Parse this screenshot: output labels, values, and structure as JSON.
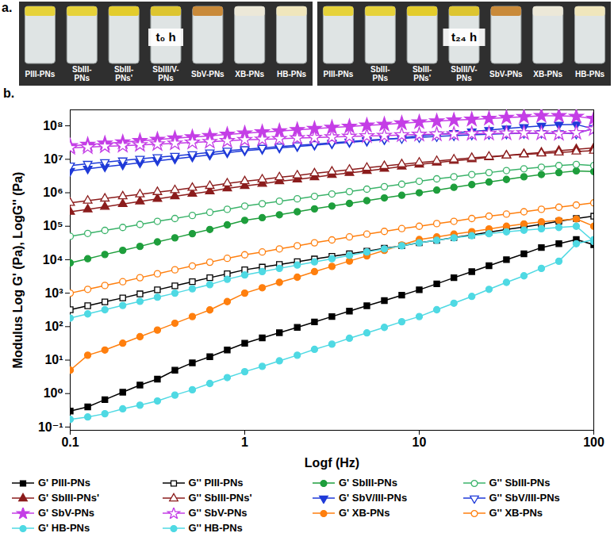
{
  "panel_a": {
    "label": "a.",
    "groups": [
      {
        "time": "t₀ h",
        "samples": [
          "PIII-PNs",
          "SbIII-PNs",
          "SbIII-PNs'",
          "SbIII/V-PNs",
          "SbV-PNs",
          "XB-PNs",
          "HB-PNs"
        ]
      },
      {
        "time": "t₂₄ h",
        "samples": [
          "PIII-PNs",
          "SbIII-PNs",
          "SbIII-PNs'",
          "SbIII/V-PNs",
          "SbV-PNs",
          "XB-PNs",
          "HB-PNs"
        ]
      }
    ]
  },
  "panel_b": {
    "label": "b."
  },
  "chart_data": {
    "type": "line",
    "x_label": "Logf (Hz)",
    "y_label": "Modulus Log G' (Pa), LogG'' (Pa)",
    "log": true,
    "grid": false,
    "legend": "bottom",
    "xlim": [
      0.1,
      100
    ],
    "xticks": [
      0.1,
      1,
      10,
      100
    ],
    "ylim": [
      0.08,
      300000000
    ],
    "yticks": [
      {
        "value": 0.1,
        "label": "10⁻¹"
      },
      {
        "value": 1,
        "label": "10⁰"
      },
      {
        "value": 10,
        "label": "10¹"
      },
      {
        "value": 100,
        "label": "10²"
      },
      {
        "value": 1000,
        "label": "10³"
      },
      {
        "value": 10000,
        "label": "10⁴"
      },
      {
        "value": 100000,
        "label": "10⁵"
      },
      {
        "value": 1000000,
        "label": "10⁶"
      },
      {
        "value": 10000000,
        "label": "10⁷"
      },
      {
        "value": 100000000,
        "label": "10⁸"
      }
    ],
    "x": [
      0.1,
      0.126,
      0.158,
      0.2,
      0.251,
      0.316,
      0.398,
      0.501,
      0.631,
      0.794,
      1,
      1.26,
      1.58,
      2,
      2.51,
      3.16,
      3.98,
      5.01,
      6.31,
      7.94,
      10,
      12.6,
      15.8,
      20,
      25.1,
      31.6,
      39.8,
      50.1,
      63.1,
      79.4,
      100
    ],
    "series": [
      {
        "name": "G' PIII-PNs",
        "color": "#000000",
        "marker": "square",
        "values": [
          0.3,
          0.4,
          0.66,
          1.1,
          1.8,
          2.7,
          5.0,
          8.3,
          12.6,
          20,
          32,
          46,
          66,
          95,
          138,
          200,
          290,
          420,
          600,
          870,
          1260,
          1900,
          2900,
          4400,
          6600,
          10000,
          15000,
          23000,
          30000,
          40000,
          28000
        ]
      },
      {
        "name": "G'' PIII-PNs",
        "color": "#000000",
        "marker": "square-open",
        "values": [
          320,
          420,
          550,
          720,
          950,
          1260,
          1660,
          2200,
          2900,
          3800,
          5000,
          6000,
          7200,
          8700,
          10500,
          12600,
          15000,
          18000,
          22000,
          26000,
          32000,
          38000,
          46000,
          55000,
          66000,
          80000,
          95000,
          115000,
          140000,
          170000,
          200000
        ]
      },
      {
        "name": "G' SbIII-PNs",
        "color": "#1e9e3c",
        "marker": "circle",
        "values": [
          8000,
          10700,
          14300,
          19000,
          25000,
          34000,
          45000,
          60000,
          80000,
          110000,
          150000,
          180000,
          220000,
          270000,
          330000,
          400000,
          480000,
          580000,
          700000,
          840000,
          1000000,
          1200000,
          1450000,
          1750000,
          2100000,
          2500000,
          3000000,
          3500000,
          4000000,
          4500000,
          4300000
        ]
      },
      {
        "name": "G'' SbIII-PNs",
        "color": "#3bb36a",
        "marker": "circle-open",
        "values": [
          50000,
          61000,
          75000,
          92000,
          113000,
          140000,
          170000,
          210000,
          260000,
          320000,
          400000,
          470000,
          560000,
          660000,
          780000,
          920000,
          1080000,
          1280000,
          1520000,
          1800000,
          2200000,
          2600000,
          3000000,
          3500000,
          4000000,
          4600000,
          5200000,
          5800000,
          6500000,
          7000000,
          6500000
        ]
      },
      {
        "name": "G' SbIII-PNs'",
        "color": "#8b1c1c",
        "marker": "triangle",
        "values": [
          270000,
          320000,
          380000,
          460000,
          550000,
          660000,
          780000,
          930000,
          1100000,
          1350000,
          1600000,
          1850000,
          2200000,
          2500000,
          2900000,
          3400000,
          3900000,
          4500000,
          5200000,
          6100000,
          7000000,
          8000000,
          9000000,
          10000000,
          11500000,
          13000000,
          14500000,
          16000000,
          18000000,
          20000000,
          22000000
        ]
      },
      {
        "name": "G'' SbIII-PNs'",
        "color": "#8b1c1c",
        "marker": "triangle-open",
        "values": [
          500000,
          580000,
          670000,
          780000,
          900000,
          1050000,
          1200000,
          1400000,
          1600000,
          1900000,
          2200000,
          2500000,
          2900000,
          3300000,
          3800000,
          4300000,
          4900000,
          5600000,
          6300000,
          7100000,
          8000000,
          8900000,
          9900000,
          11000000,
          12000000,
          13000000,
          14000000,
          15000000,
          16000000,
          17000000,
          18000000
        ]
      },
      {
        "name": "G' SbV/III-PNs",
        "color": "#1f3ad8",
        "marker": "triangle-down",
        "values": [
          4500000,
          5200000,
          6000000,
          6900000,
          7900000,
          9000000,
          10300000,
          11800000,
          13500000,
          15700000,
          18000000,
          20000000,
          22000000,
          24000000,
          26500000,
          29000000,
          32000000,
          35000000,
          39000000,
          44000000,
          50000000,
          55000000,
          61000000,
          68000000,
          75000000,
          83000000,
          92000000,
          100000000,
          108000000,
          110000000,
          80000000
        ]
      },
      {
        "name": "G'' SbV/III-PNs",
        "color": "#1f3ad8",
        "marker": "triangle-down-open",
        "values": [
          6500000,
          7300000,
          8200000,
          9200000,
          10300000,
          11500000,
          12700000,
          14200000,
          16000000,
          18000000,
          20000000,
          22000000,
          24000000,
          26000000,
          28500000,
          31000000,
          34000000,
          37000000,
          40000000,
          42000000,
          45000000,
          48000000,
          51000000,
          54000000,
          56000000,
          58000000,
          60000000,
          61000000,
          60000000,
          58000000,
          85000000
        ]
      },
      {
        "name": "G' SbV-PNs",
        "color": "#c43ee6",
        "marker": "star",
        "values": [
          25000000,
          27500000,
          30000000,
          32500000,
          35500000,
          39000000,
          42500000,
          46000000,
          50000000,
          55000000,
          60000000,
          65000000,
          70000000,
          76000000,
          82000000,
          89000000,
          95000000,
          103000000,
          110000000,
          120000000,
          129000000,
          137000000,
          147000000,
          155000000,
          165000000,
          177000000,
          185000000,
          200000000,
          200000000,
          190000000,
          165000000
        ]
      },
      {
        "name": "G'' SbV-PNs",
        "color": "#c43ee6",
        "marker": "star-open",
        "values": [
          22000000,
          23000000,
          24500000,
          25500000,
          27000000,
          28500000,
          30000000,
          32000000,
          33500000,
          35500000,
          38000000,
          39500000,
          41000000,
          43000000,
          44500000,
          46000000,
          48000000,
          49500000,
          51000000,
          53000000,
          55000000,
          56000000,
          57000000,
          58000000,
          59000000,
          60000000,
          61000000,
          60000000,
          58000000,
          62000000,
          80000000
        ]
      },
      {
        "name": "G' XB-PNs",
        "color": "#ff7f0e",
        "marker": "circle",
        "values": [
          5,
          14,
          20,
          32,
          50,
          79,
          126,
          200,
          316,
          560,
          1000,
          1450,
          2100,
          3000,
          4400,
          6300,
          9100,
          13000,
          19000,
          27500,
          40000,
          48000,
          58000,
          69000,
          83000,
          100000,
          117000,
          135000,
          150000,
          165000,
          100000
        ]
      },
      {
        "name": "G'' XB-PNs",
        "color": "#ff7f0e",
        "marker": "circle-open",
        "values": [
          1000,
          1300,
          1700,
          2200,
          2900,
          3800,
          5000,
          6500,
          8400,
          11000,
          14000,
          17000,
          21000,
          26000,
          32000,
          39000,
          48000,
          58000,
          70000,
          85000,
          100000,
          120000,
          140000,
          170000,
          200000,
          230000,
          270000,
          320000,
          370000,
          430000,
          500000
        ]
      },
      {
        "name": "G' HB-PNs",
        "color": "#4fd9e3",
        "marker": "circle",
        "values": [
          0.17,
          0.2,
          0.25,
          0.35,
          0.45,
          0.6,
          0.9,
          1.3,
          2.0,
          3.0,
          4.5,
          6.5,
          9.5,
          14,
          21,
          30,
          45,
          65,
          95,
          140,
          200,
          320,
          500,
          800,
          1300,
          2100,
          3300,
          5500,
          9000,
          30000,
          40000
        ]
      },
      {
        "name": "G'' HB-PNs",
        "color": "#4fd9e3",
        "marker": "circle",
        "values": [
          180,
          240,
          320,
          430,
          570,
          760,
          1000,
          1350,
          1800,
          2600,
          3500,
          4400,
          5500,
          6900,
          8600,
          10700,
          13500,
          17000,
          21000,
          26000,
          32000,
          38000,
          45000,
          52000,
          60000,
          68000,
          76000,
          84000,
          92000,
          100000,
          35000
        ]
      }
    ]
  }
}
